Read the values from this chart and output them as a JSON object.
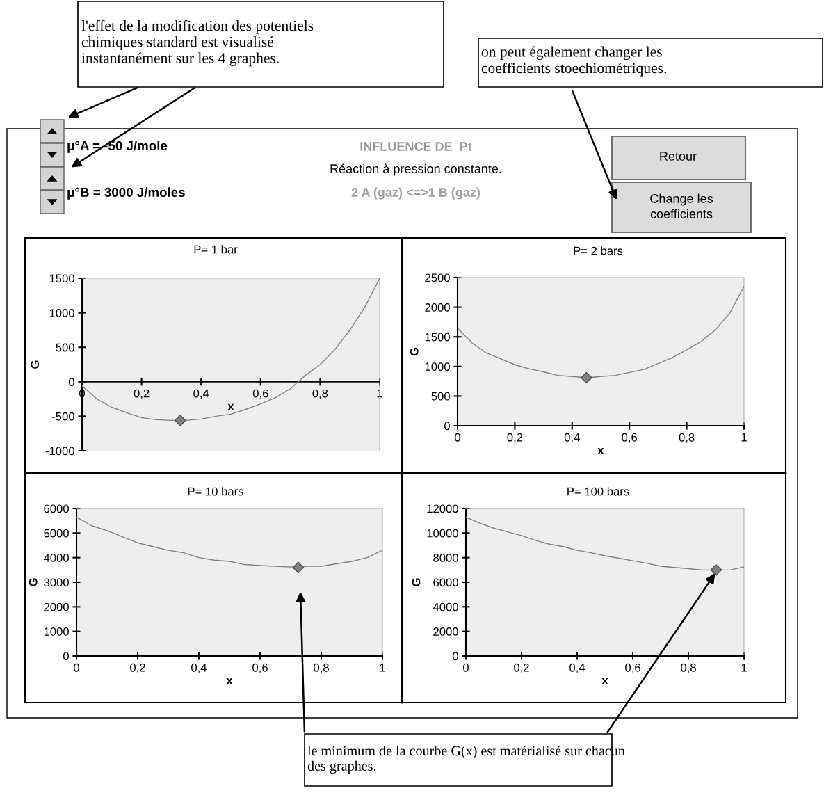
{
  "chart_data": [
    {
      "type": "other",
      "title": "INFLUENCE DE  Pt",
      "subtitle": "Réaction à pression constante.",
      "annotations": [
        "2 A (gaz) <=>1 B (gaz)",
        "μ°A = -50 J/mole",
        "μ°B = 3000 J/moles",
        "Retour",
        "Change les\ncoefficients",
        "l'effet de la modification des potentiels\nchimiques standard est visualisé\ninstantanément sur les 4 graphes.",
        "on peut également changer les\ncoefficients stoechiométriques.",
        "le minimum de la courbe G(x) est matérialisé sur chacun\ndes graphes."
      ]
    },
    {
      "type": "line",
      "title": "P= 1 bar",
      "xlabel": "x",
      "ylabel": "G",
      "xlim": [
        0,
        1
      ],
      "ylim": [
        -1000,
        1500
      ],
      "xticks": [
        0,
        {
          "value": 0.2,
          "label": "0,2"
        },
        {
          "value": 0.4,
          "label": "0,4"
        },
        {
          "value": 0.6,
          "label": "0,6"
        },
        {
          "value": 0.8,
          "label": "0,8"
        },
        1
      ],
      "yticks": [
        -1000,
        -500,
        0,
        500,
        1000,
        1500
      ],
      "grid": false,
      "series": [
        {
          "color": "#808080",
          "x": [
            0,
            0.05,
            0.1,
            0.15,
            0.2,
            0.25,
            0.3,
            0.35,
            0.4,
            0.45,
            0.5,
            0.55,
            0.6,
            0.65,
            0.7,
            0.75,
            0.8,
            0.85,
            0.9,
            0.95,
            1
          ],
          "values": [
            -60,
            -250,
            -370,
            -450,
            -520,
            -550,
            -560,
            -560,
            -540,
            -500,
            -470,
            -400,
            -320,
            -230,
            -100,
            90,
            250,
            470,
            750,
            1080,
            1500
          ]
        },
        {
          "type": "scatter",
          "marker": "diamond",
          "color": "#808080",
          "x": [
            0.33
          ],
          "values": [
            -560
          ]
        }
      ]
    },
    {
      "type": "line",
      "title": "P= 2 bars",
      "xlabel": "x",
      "ylabel": "G",
      "xlim": [
        0,
        1
      ],
      "ylim": [
        0,
        2500
      ],
      "xticks": [
        0,
        {
          "value": 0.2,
          "label": "0,2"
        },
        {
          "value": 0.4,
          "label": "0,4"
        },
        {
          "value": 0.6,
          "label": "0,6"
        },
        {
          "value": 0.8,
          "label": "0,8"
        },
        1
      ],
      "yticks": [
        0,
        500,
        1000,
        1500,
        2000,
        2500
      ],
      "grid": false,
      "series": [
        {
          "color": "#808080",
          "x": [
            0,
            0.05,
            0.1,
            0.15,
            0.2,
            0.25,
            0.3,
            0.35,
            0.4,
            0.45,
            0.5,
            0.55,
            0.6,
            0.65,
            0.7,
            0.75,
            0.8,
            0.85,
            0.9,
            0.95,
            1
          ],
          "values": [
            1650,
            1400,
            1230,
            1130,
            1030,
            960,
            910,
            850,
            830,
            810,
            830,
            850,
            900,
            950,
            1050,
            1150,
            1280,
            1420,
            1620,
            1900,
            2350
          ]
        },
        {
          "type": "scatter",
          "marker": "diamond",
          "color": "#808080",
          "x": [
            0.45
          ],
          "values": [
            810
          ]
        }
      ]
    },
    {
      "type": "line",
      "title": "P= 10 bars",
      "xlabel": "x",
      "ylabel": "G",
      "xlim": [
        0,
        1
      ],
      "ylim": [
        0,
        6000
      ],
      "xticks": [
        0,
        {
          "value": 0.2,
          "label": "0,2"
        },
        {
          "value": 0.4,
          "label": "0,4"
        },
        {
          "value": 0.6,
          "label": "0,6"
        },
        {
          "value": 0.8,
          "label": "0,8"
        },
        1
      ],
      "yticks": [
        0,
        1000,
        2000,
        3000,
        4000,
        5000,
        6000
      ],
      "grid": false,
      "series": [
        {
          "color": "#808080",
          "x": [
            0,
            0.05,
            0.1,
            0.15,
            0.2,
            0.25,
            0.3,
            0.35,
            0.4,
            0.45,
            0.5,
            0.55,
            0.6,
            0.65,
            0.7,
            0.75,
            0.8,
            0.85,
            0.9,
            0.95,
            1
          ],
          "values": [
            5650,
            5300,
            5100,
            4850,
            4600,
            4450,
            4300,
            4200,
            4000,
            3900,
            3850,
            3720,
            3680,
            3650,
            3620,
            3650,
            3650,
            3750,
            3850,
            4000,
            4300
          ]
        },
        {
          "type": "scatter",
          "marker": "diamond",
          "color": "#808080",
          "x": [
            0.725
          ],
          "values": [
            3600
          ]
        }
      ]
    },
    {
      "type": "line",
      "title": "P= 100 bars",
      "xlabel": "x",
      "ylabel": "G",
      "xlim": [
        0,
        1
      ],
      "ylim": [
        0,
        12000
      ],
      "xticks": [
        0,
        {
          "value": 0.2,
          "label": "0,2"
        },
        {
          "value": 0.4,
          "label": "0,4"
        },
        {
          "value": 0.6,
          "label": "0,6"
        },
        {
          "value": 0.8,
          "label": "0,8"
        },
        1
      ],
      "yticks": [
        0,
        2000,
        4000,
        6000,
        8000,
        10000,
        12000
      ],
      "grid": false,
      "series": [
        {
          "color": "#808080",
          "x": [
            0,
            0.05,
            0.1,
            0.15,
            0.2,
            0.25,
            0.3,
            0.35,
            0.4,
            0.45,
            0.5,
            0.55,
            0.6,
            0.65,
            0.7,
            0.75,
            0.8,
            0.85,
            0.9,
            0.95,
            1
          ],
          "values": [
            11300,
            10800,
            10400,
            10100,
            9800,
            9400,
            9100,
            8900,
            8600,
            8400,
            8150,
            7950,
            7750,
            7550,
            7300,
            7200,
            7100,
            7000,
            7000,
            7000,
            7250
          ]
        },
        {
          "type": "scatter",
          "marker": "diamond",
          "color": "#808080",
          "x": [
            0.9
          ],
          "values": [
            7000
          ]
        }
      ]
    }
  ]
}
